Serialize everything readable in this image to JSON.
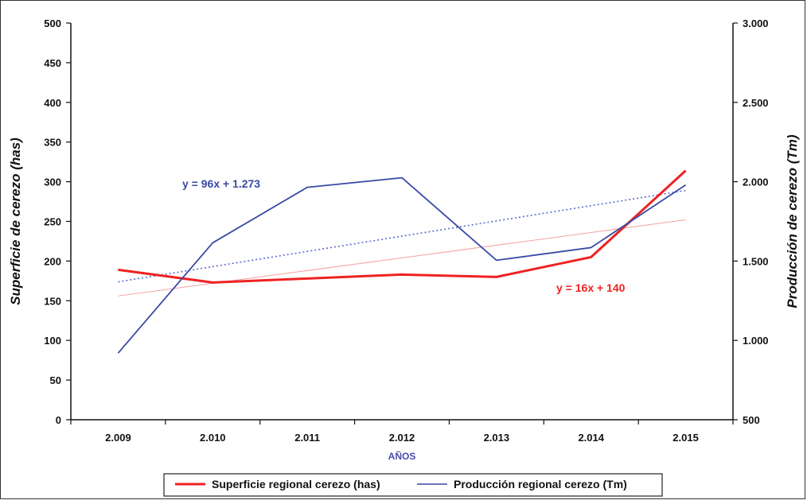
{
  "chart_data": {
    "type": "line",
    "xlabel": "AÑOS",
    "categories": [
      "2.009",
      "2.010",
      "2.011",
      "2.012",
      "2.013",
      "2.014",
      "2.015"
    ],
    "y_left": {
      "label": "Superficie de cerezo (has)",
      "range": [
        0,
        500
      ],
      "ticks": [
        "0",
        "50",
        "100",
        "150",
        "200",
        "250",
        "300",
        "350",
        "400",
        "450",
        "500"
      ]
    },
    "y_right": {
      "label": "Producción de cerezo (Tm)",
      "range": [
        500,
        3000
      ],
      "ticks": [
        "500",
        "1.000",
        "1.500",
        "2.000",
        "2.500",
        "3.000"
      ]
    },
    "series": [
      {
        "name": "Superficie regional cerezo (has)",
        "axis": "left",
        "color": "#ee2222",
        "values": [
          189,
          173,
          178,
          183,
          180,
          205,
          314
        ],
        "trend": {
          "slope": 16,
          "intercept": 140,
          "equation": "y = 16x + 140",
          "style": "solid",
          "color": "#f5a0a0"
        }
      },
      {
        "name": "Producción regional cerezo (Tm)",
        "axis": "right",
        "color": "#3a4aa6",
        "values": [
          920,
          1615,
          1965,
          2025,
          1505,
          1585,
          1980
        ],
        "trend": {
          "slope": 96,
          "intercept": 1273,
          "equation": "y = 96x + 1.273",
          "style": "dotted",
          "color": "#5a6ad0"
        }
      }
    ],
    "grid": false,
    "legend_position": "bottom"
  }
}
